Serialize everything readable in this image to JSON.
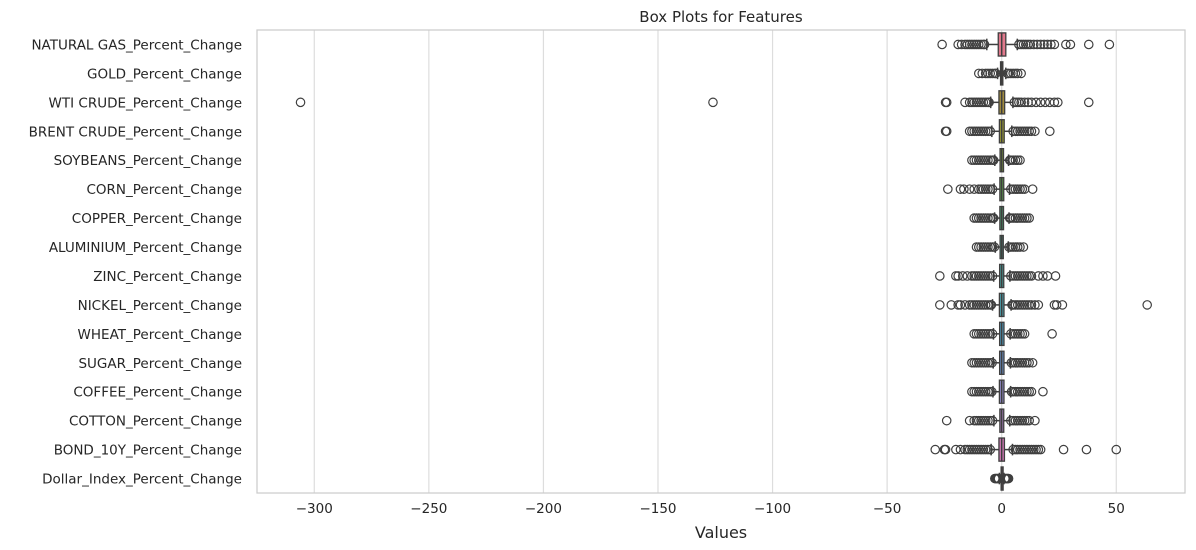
{
  "chart_data": {
    "type": "boxplot-horizontal",
    "title": "Box Plots for Features",
    "xlabel": "Values",
    "ylabel": "",
    "xlim": [
      -325,
      80
    ],
    "xticks": [
      -300,
      -250,
      -200,
      -150,
      -100,
      -50,
      0,
      50
    ],
    "xtick_labels": [
      "−300",
      "−250",
      "−200",
      "−150",
      "−100",
      "−50",
      "0",
      "50"
    ],
    "grid": "vertical",
    "series": [
      {
        "name": "NATURAL GAS_Percent_Change",
        "color": "#e1798c",
        "q1": -1.5,
        "median": 0.0,
        "q3": 1.8,
        "whislo": -6.5,
        "whishi": 6.8,
        "fliers": [
          -26,
          -19,
          -17.5,
          -16,
          -15,
          -14,
          -13,
          -12,
          -11,
          -10,
          -9,
          -8,
          -7.5,
          7.5,
          8.5,
          9.5,
          10.5,
          11.5,
          12.5,
          14,
          15.5,
          17,
          18.5,
          20,
          21.5,
          23,
          28,
          30,
          38,
          47
        ]
      },
      {
        "name": "GOLD_Percent_Change",
        "color": "#d99f5c",
        "q1": -0.5,
        "median": 0.0,
        "q3": 0.5,
        "whislo": -1.8,
        "whishi": 1.8,
        "fliers": [
          -10,
          -8.5,
          -7,
          -6,
          -5,
          -4,
          -3,
          -2.5,
          2.5,
          3,
          4,
          5,
          6,
          7,
          8.5
        ]
      },
      {
        "name": "WTI CRUDE_Percent_Change",
        "color": "#a08a3e",
        "q1": -1.2,
        "median": 0.0,
        "q3": 1.3,
        "whislo": -4.8,
        "whishi": 4.9,
        "fliers": [
          -306,
          -126,
          -24.5,
          -24,
          -16,
          -14,
          -13,
          -12,
          -11,
          -10,
          -9,
          -8,
          -7,
          -6,
          -5.5,
          5.5,
          6.5,
          7.5,
          8.5,
          10,
          11.5,
          13,
          15,
          17,
          19,
          21,
          23,
          24.5,
          38
        ]
      },
      {
        "name": "BRENT CRUDE_Percent_Change",
        "color": "#969635",
        "q1": -1.0,
        "median": 0.0,
        "q3": 1.1,
        "whislo": -4.3,
        "whishi": 4.4,
        "fliers": [
          -24.5,
          -24,
          -14,
          -13,
          -12,
          -11,
          -10,
          -9,
          -8,
          -7,
          -6,
          -5,
          5,
          6,
          7,
          8,
          9,
          10,
          11,
          12,
          13,
          14.5,
          21
        ]
      },
      {
        "name": "SOYBEANS_Percent_Change",
        "color": "#82a33b",
        "q1": -0.7,
        "median": 0.0,
        "q3": 0.8,
        "whislo": -3.0,
        "whishi": 3.0,
        "fliers": [
          -13,
          -12,
          -11,
          -10,
          -9,
          -8,
          -7,
          -6,
          -5,
          -4,
          -3.5,
          3.5,
          4,
          5,
          6,
          7,
          8
        ]
      },
      {
        "name": "CORN_Percent_Change",
        "color": "#5ea44d",
        "q1": -0.8,
        "median": 0.0,
        "q3": 0.9,
        "whislo": -3.3,
        "whishi": 3.4,
        "fliers": [
          -23.5,
          -18,
          -16.5,
          -14,
          -12,
          -10,
          -9,
          -8,
          -7,
          -6,
          -5,
          -4,
          4,
          5,
          6,
          7,
          8,
          9,
          10,
          13.5
        ]
      },
      {
        "name": "COPPER_Percent_Change",
        "color": "#4ba36f",
        "q1": -0.8,
        "median": 0.0,
        "q3": 0.8,
        "whislo": -3.1,
        "whishi": 3.2,
        "fliers": [
          -12,
          -11,
          -10,
          -9,
          -8,
          -7,
          -6,
          -5,
          -4,
          -3.5,
          3.5,
          4,
          5,
          6,
          7,
          8,
          9,
          10,
          11,
          12
        ]
      },
      {
        "name": "ALUMINIUM_Percent_Change",
        "color": "#47a08c",
        "q1": -0.7,
        "median": 0.0,
        "q3": 0.7,
        "whislo": -2.8,
        "whishi": 2.9,
        "fliers": [
          -11,
          -10,
          -9,
          -8,
          -7,
          -6,
          -5,
          -4,
          -3.2,
          3.2,
          4,
          5,
          6,
          7,
          8,
          9.5
        ]
      },
      {
        "name": "ZINC_Percent_Change",
        "color": "#489e9c",
        "q1": -0.9,
        "median": 0.0,
        "q3": 0.9,
        "whislo": -3.5,
        "whishi": 3.6,
        "fliers": [
          -27,
          -20,
          -19,
          -17,
          -15,
          -13,
          -12,
          -11,
          -10,
          -9,
          -8,
          -7,
          -6,
          -5,
          -4,
          4,
          5,
          6,
          7,
          8,
          9,
          10,
          11,
          12,
          13,
          16,
          18,
          20,
          23.5
        ]
      },
      {
        "name": "NICKEL_Percent_Change",
        "color": "#4b9eab",
        "q1": -1.0,
        "median": 0.0,
        "q3": 1.0,
        "whislo": -4.0,
        "whishi": 4.1,
        "fliers": [
          -27,
          -22,
          -19,
          -18,
          -16,
          -14,
          -13,
          -12,
          -11,
          -10,
          -9,
          -8,
          -7,
          -6,
          -5,
          -4.5,
          4.5,
          5,
          6,
          7,
          8,
          9,
          10,
          11,
          12,
          13,
          14.5,
          16,
          23,
          24,
          26.5,
          63.5
        ]
      },
      {
        "name": "WHEAT_Percent_Change",
        "color": "#4c9cc0",
        "q1": -0.9,
        "median": 0.0,
        "q3": 1.0,
        "whislo": -3.6,
        "whishi": 3.7,
        "fliers": [
          -12,
          -11,
          -10,
          -9,
          -8,
          -7,
          -6,
          -5,
          -4,
          4,
          5,
          6,
          7,
          8,
          9,
          10,
          22
        ]
      },
      {
        "name": "SUGAR_Percent_Change",
        "color": "#6a8fc7",
        "q1": -0.9,
        "median": 0.0,
        "q3": 1.0,
        "whislo": -3.7,
        "whishi": 3.8,
        "fliers": [
          -13,
          -12,
          -11,
          -10,
          -9,
          -8,
          -7,
          -6,
          -5,
          -4.2,
          4.2,
          5,
          6,
          7,
          8,
          9,
          10,
          11,
          12,
          13.5
        ]
      },
      {
        "name": "COFFEE_Percent_Change",
        "color": "#8f88c6",
        "q1": -1.0,
        "median": 0.0,
        "q3": 1.0,
        "whislo": -3.8,
        "whishi": 3.9,
        "fliers": [
          -13,
          -12,
          -11,
          -10,
          -9,
          -8,
          -7,
          -6,
          -5,
          -4.3,
          4.3,
          5,
          6,
          7,
          8,
          9,
          10,
          11,
          12,
          13,
          18
        ]
      },
      {
        "name": "COTTON_Percent_Change",
        "color": "#ad81c4",
        "q1": -0.8,
        "median": 0.0,
        "q3": 0.9,
        "whislo": -3.4,
        "whishi": 3.5,
        "fliers": [
          -24,
          -14,
          -12,
          -11,
          -10,
          -9,
          -8,
          -7,
          -6,
          -5,
          -4,
          4,
          5,
          6,
          7,
          8,
          9,
          10,
          11,
          12,
          14.5
        ]
      },
      {
        "name": "BOND_10Y_Percent_Change",
        "color": "#cc75b2",
        "q1": -1.2,
        "median": 0.0,
        "q3": 1.2,
        "whislo": -4.6,
        "whishi": 4.7,
        "fliers": [
          -29,
          -25,
          -24.5,
          -20,
          -18,
          -16,
          -15,
          -14,
          -13,
          -12,
          -11,
          -10,
          -9,
          -8,
          -7,
          -6,
          -5,
          5,
          6,
          7,
          8,
          9,
          10,
          11,
          12,
          13,
          14,
          15,
          16,
          17,
          27,
          37,
          50
        ]
      },
      {
        "name": "Dollar_Index_Percent_Change",
        "color": "#d6789f",
        "q1": -0.25,
        "median": 0.0,
        "q3": 0.25,
        "whislo": -1.0,
        "whishi": 1.0,
        "fliers": [
          -3,
          -2.6,
          -2.2,
          -1.8,
          -1.4,
          1.4,
          1.8,
          2.2,
          2.6,
          3
        ]
      }
    ]
  }
}
